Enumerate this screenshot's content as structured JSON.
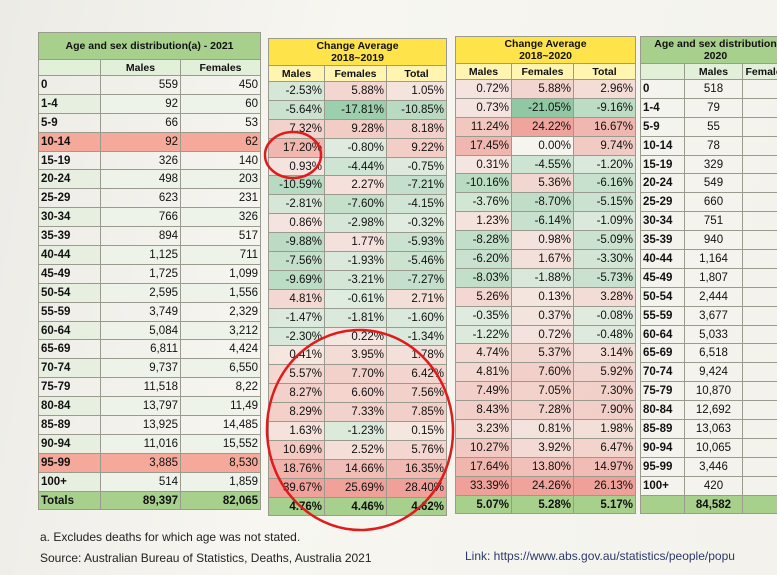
{
  "left": {
    "title": "Age and sex distribution(a) - 2021",
    "col_males": "Males",
    "col_females": "Females",
    "rows": [
      [
        "0",
        "559",
        "450"
      ],
      [
        "1-4",
        "92",
        "60"
      ],
      [
        "5-9",
        "66",
        "53"
      ],
      [
        "10-14",
        "92",
        "62"
      ],
      [
        "15-19",
        "326",
        "140"
      ],
      [
        "20-24",
        "498",
        "203"
      ],
      [
        "25-29",
        "623",
        "231"
      ],
      [
        "30-34",
        "766",
        "326"
      ],
      [
        "35-39",
        "894",
        "517"
      ],
      [
        "40-44",
        "1,125",
        "711"
      ],
      [
        "45-49",
        "1,725",
        "1,099"
      ],
      [
        "50-54",
        "2,595",
        "1,556"
      ],
      [
        "55-59",
        "3,749",
        "2,329"
      ],
      [
        "60-64",
        "5,084",
        "3,212"
      ],
      [
        "65-69",
        "6,811",
        "4,424"
      ],
      [
        "70-74",
        "9,737",
        "6,550"
      ],
      [
        "75-79",
        "11,518",
        "8,22"
      ],
      [
        "80-84",
        "13,797",
        "11,49"
      ],
      [
        "85-89",
        "13,925",
        "14,485"
      ],
      [
        "90-94",
        "11,016",
        "15,552"
      ],
      [
        "95-99",
        "3,885",
        "8,530"
      ],
      [
        "100+",
        "514",
        "1,859"
      ]
    ],
    "totals": [
      "Totals",
      "89,397",
      "82,065"
    ]
  },
  "change1": {
    "title_line1": "Change Average",
    "title_line2": "2018~2019",
    "col_males": "Males",
    "col_females": "Females",
    "col_total": "Total",
    "rows": [
      [
        "-2.53%",
        "5.88%",
        "1.05%"
      ],
      [
        "-5.64%",
        "-17.81%",
        "-10.85%"
      ],
      [
        "7.32%",
        "9.28%",
        "8.18%"
      ],
      [
        "17.20%",
        "-0.80%",
        "9.22%"
      ],
      [
        "0.93%",
        "-4.44%",
        "-0.75%"
      ],
      [
        "-10.59%",
        "2.27%",
        "-7.21%"
      ],
      [
        "-2.81%",
        "-7.60%",
        "-4.15%"
      ],
      [
        "0.86%",
        "-2.98%",
        "-0.32%"
      ],
      [
        "-9.88%",
        "1.77%",
        "-5.93%"
      ],
      [
        "-7.56%",
        "-1.93%",
        "-5.46%"
      ],
      [
        "-9.69%",
        "-3.21%",
        "-7.27%"
      ],
      [
        "4.81%",
        "-0.61%",
        "2.71%"
      ],
      [
        "-1.47%",
        "-1.81%",
        "-1.60%"
      ],
      [
        "-2.30%",
        "0.22%",
        "-1.34%"
      ],
      [
        "0.41%",
        "3.95%",
        "1.78%"
      ],
      [
        "5.57%",
        "7.70%",
        "6.42%"
      ],
      [
        "8.27%",
        "6.60%",
        "7.56%"
      ],
      [
        "8.29%",
        "7.33%",
        "7.85%"
      ],
      [
        "1.63%",
        "-1.23%",
        "0.15%"
      ],
      [
        "10.69%",
        "2.52%",
        "5.76%"
      ],
      [
        "18.76%",
        "14.66%",
        "16.35%"
      ],
      [
        "39.67%",
        "25.69%",
        "28.40%"
      ]
    ],
    "totals": [
      "4.76%",
      "4.46%",
      "4.62%"
    ]
  },
  "change2": {
    "title_line1": "Change Average",
    "title_line2": "2018~2020",
    "col_males": "Males",
    "col_females": "Females",
    "col_total": "Total",
    "rows": [
      [
        "0.72%",
        "5.88%",
        "2.96%"
      ],
      [
        "0.73%",
        "-21.05%",
        "-9.16%"
      ],
      [
        "11.24%",
        "24.22%",
        "16.67%"
      ],
      [
        "17.45%",
        "0.00%",
        "9.74%"
      ],
      [
        "0.31%",
        "-4.55%",
        "-1.20%"
      ],
      [
        "-10.16%",
        "5.36%",
        "-6.16%"
      ],
      [
        "-3.76%",
        "-8.70%",
        "-5.15%"
      ],
      [
        "1.23%",
        "-6.14%",
        "-1.09%"
      ],
      [
        "-8.28%",
        "0.98%",
        "-5.09%"
      ],
      [
        "-6.20%",
        "1.67%",
        "-3.30%"
      ],
      [
        "-8.03%",
        "-1.88%",
        "-5.73%"
      ],
      [
        "5.26%",
        "0.13%",
        "3.28%"
      ],
      [
        "-0.35%",
        "0.37%",
        "-0.08%"
      ],
      [
        "-1.22%",
        "0.72%",
        "-0.48%"
      ],
      [
        "4.74%",
        "5.37%",
        "3.14%"
      ],
      [
        "4.81%",
        "7.60%",
        "5.92%"
      ],
      [
        "7.49%",
        "7.05%",
        "7.30%"
      ],
      [
        "8.43%",
        "7.28%",
        "7.90%"
      ],
      [
        "3.23%",
        "0.81%",
        "1.98%"
      ],
      [
        "10.27%",
        "3.92%",
        "6.47%"
      ],
      [
        "17.64%",
        "13.80%",
        "14.97%"
      ],
      [
        "33.39%",
        "24.26%",
        "26.13%"
      ]
    ],
    "totals": [
      "5.07%",
      "5.28%",
      "5.17%"
    ]
  },
  "right": {
    "title_line1": "Age and sex distribution",
    "title_line2": "2020",
    "col_males": "Males",
    "col_females": "Females",
    "rows": [
      [
        "0",
        "518"
      ],
      [
        "1-4",
        "79"
      ],
      [
        "5-9",
        "55"
      ],
      [
        "10-14",
        "78"
      ],
      [
        "15-19",
        "329"
      ],
      [
        "20-24",
        "549"
      ],
      [
        "25-29",
        "660"
      ],
      [
        "30-34",
        "751"
      ],
      [
        "35-39",
        "940"
      ],
      [
        "40-44",
        "1,164"
      ],
      [
        "45-49",
        "1,807"
      ],
      [
        "50-54",
        "2,444"
      ],
      [
        "55-59",
        "3,677"
      ],
      [
        "60-64",
        "5,033"
      ],
      [
        "65-69",
        "6,518"
      ],
      [
        "70-74",
        "9,424"
      ],
      [
        "75-79",
        "10,870"
      ],
      [
        "80-84",
        "12,692"
      ],
      [
        "85-89",
        "13,063"
      ],
      [
        "90-94",
        "10,065"
      ],
      [
        "95-99",
        "3,446"
      ],
      [
        "100+",
        "420"
      ]
    ],
    "totals": [
      "",
      "84,582"
    ]
  },
  "footnote": "a. Excludes deaths for which age was not stated.",
  "source": "Source: Australian Bureau of Statistics, Deaths, Australia 2021",
  "link": "Link:  https://www.abs.gov.au/statistics/people/popu",
  "colors": {
    "header_green": "#a8d08d",
    "header_yellow": "#ffe34a",
    "pos": "#f2b8a8",
    "neg": "#9fd4b2",
    "circle": "#e01b1b"
  }
}
